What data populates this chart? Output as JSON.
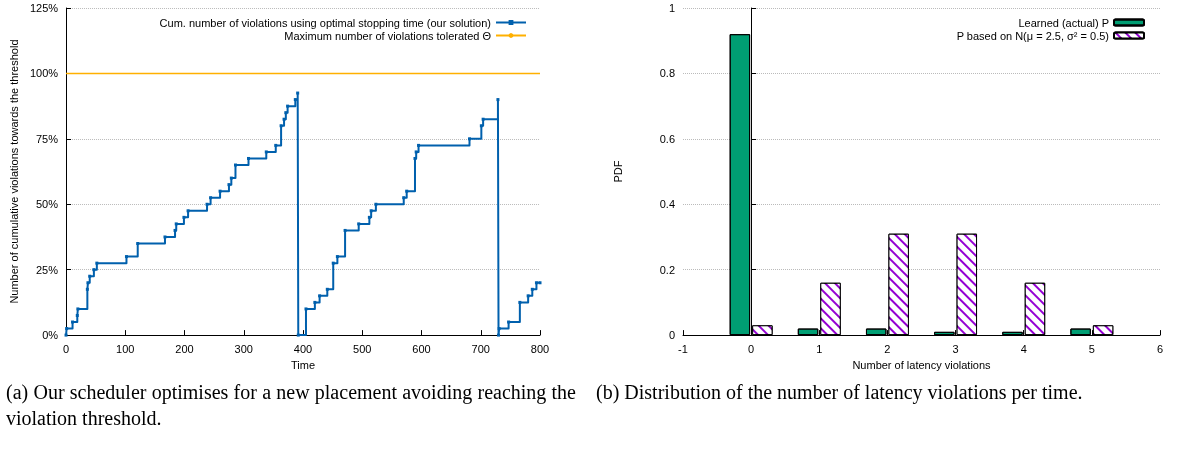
{
  "chart_data": [
    {
      "type": "step",
      "xlabel": "Time",
      "ylabel": "Number of cumulative violations towards the threshold",
      "xlim": [
        0,
        800
      ],
      "xticks": [
        0,
        100,
        200,
        300,
        400,
        500,
        600,
        700,
        800
      ],
      "ylim": [
        0,
        125
      ],
      "yticks": [
        {
          "value": 0,
          "label": "0%"
        },
        {
          "value": 25,
          "label": "25%"
        },
        {
          "value": 50,
          "label": "50%"
        },
        {
          "value": 75,
          "label": "75%"
        },
        {
          "value": 100,
          "label": "100%"
        },
        {
          "value": 125,
          "label": "125%"
        }
      ],
      "grid": "y",
      "legend": "top right",
      "series": [
        {
          "name": "Cum. number of violations using optimal stopping time (our solution)",
          "color": "#0060ad",
          "marker": "square",
          "x": [
            0,
            1,
            11,
            19,
            20,
            36,
            37,
            40,
            47,
            52,
            102,
            121,
            167,
            184,
            186,
            199,
            206,
            238,
            244,
            260,
            275,
            279,
            286,
            308,
            338,
            354,
            363,
            368,
            371,
            374,
            387,
            391,
            392,
            405,
            420,
            428,
            441,
            451,
            458,
            471,
            494,
            512,
            515,
            523,
            570,
            575,
            589,
            591,
            595,
            681,
            701,
            704,
            729,
            730,
            731,
            747,
            766,
            780,
            787,
            794,
            800
          ],
          "values": [
            0,
            2.5,
            5,
            7.5,
            10,
            17.5,
            20,
            22.5,
            25,
            27.5,
            30,
            35,
            37.5,
            40,
            42.5,
            45,
            47.5,
            50,
            52.5,
            55,
            57.5,
            60,
            65,
            67.5,
            70,
            72.5,
            80,
            82.5,
            85,
            87.5,
            90,
            92.5,
            0,
            10,
            12.5,
            15,
            17.5,
            27.5,
            30,
            40,
            42.5,
            45,
            47.5,
            50,
            52.5,
            55,
            67.5,
            70,
            72.5,
            75,
            80,
            82.5,
            90,
            0,
            2.5,
            5,
            12.5,
            15,
            17.5,
            20,
            20
          ]
        },
        {
          "name": "Maximum number of violations tolerated Θ",
          "color": "#ffb000",
          "type": "line",
          "x": [
            0,
            800
          ],
          "values": [
            100,
            100
          ]
        }
      ],
      "annotations": [
        "(a) Our scheduler optimises for a new placement avoiding reaching the violation threshold."
      ]
    },
    {
      "type": "bar",
      "xlabel": "Number of latency violations",
      "ylabel": "PDF",
      "x": [
        0,
        1,
        2,
        3,
        4,
        5
      ],
      "xlim": [
        -1,
        6
      ],
      "xticks": [
        -1,
        0,
        1,
        2,
        3,
        4,
        5,
        6
      ],
      "ylim": [
        0,
        1
      ],
      "yticks": [
        0,
        0.2,
        0.4,
        0.6,
        0.8,
        1
      ],
      "grid": "y",
      "legend": "top right",
      "series": [
        {
          "name": "Learned (actual) P",
          "color": "#009e73",
          "values": [
            0.92,
            0.02,
            0.02,
            0.01,
            0.01,
            0.02
          ]
        },
        {
          "name": "P based on N(μ = 2.5, σ² = 0.5)",
          "color": "#9400d3",
          "values": [
            0.03,
            0.16,
            0.31,
            0.31,
            0.16,
            0.03
          ]
        }
      ],
      "annotations": [
        "(b) Distribution of the number of latency violations per time."
      ]
    }
  ]
}
